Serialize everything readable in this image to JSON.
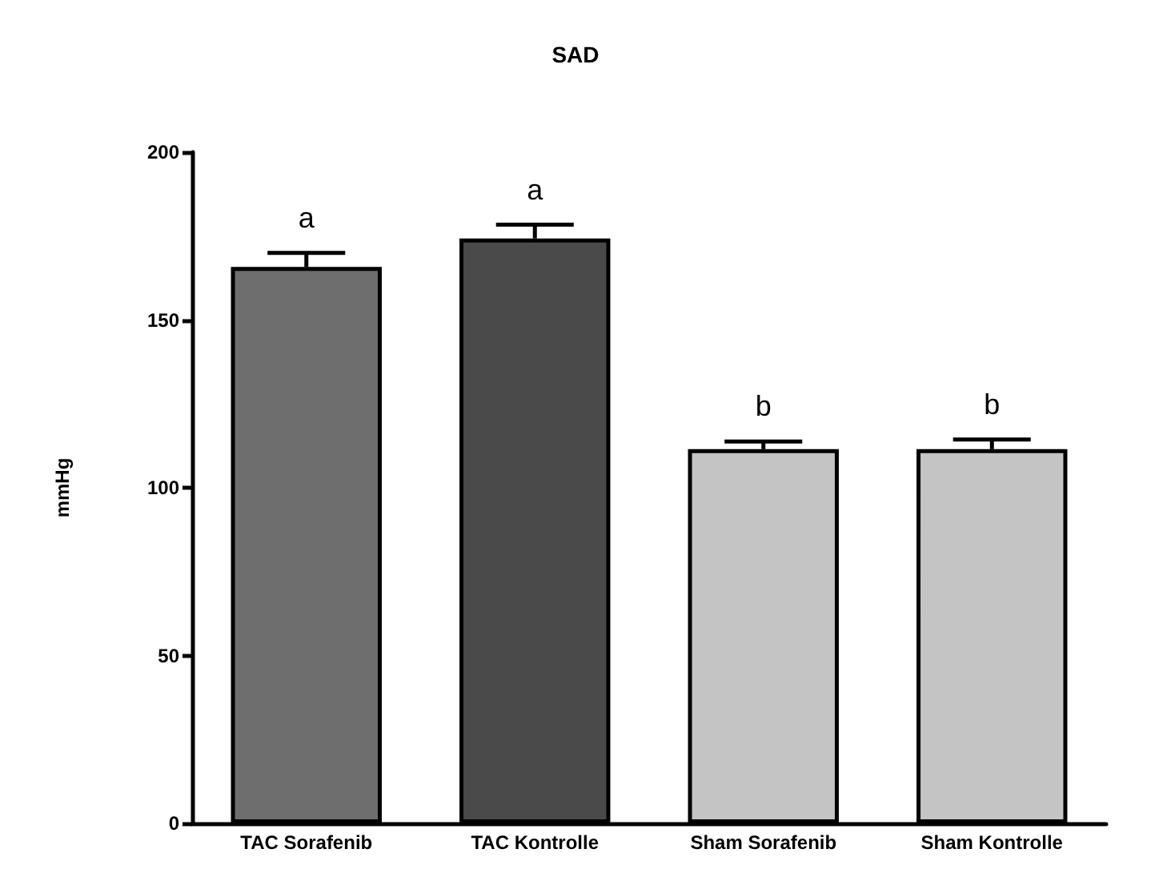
{
  "chart_data": {
    "type": "bar",
    "title": "SAD",
    "ylabel": "mmHg",
    "categories": [
      "TAC Sorafenib",
      "TAC Kontrolle",
      "Sham Sorafenib",
      "Sham Kontrolle"
    ],
    "values": [
      165.8,
      174.3,
      111.5,
      111.5
    ],
    "errors": [
      4.2,
      4.1,
      2.3,
      2.9
    ],
    "colors": [
      "#6e6e6e",
      "#4a4a4a",
      "#c4c4c4",
      "#c4c4c4"
    ],
    "ylim": [
      0,
      200
    ],
    "yticks": [
      0,
      50,
      100,
      150,
      200
    ],
    "grid": false,
    "annotations": [
      "a",
      "a",
      "b",
      "b"
    ]
  }
}
